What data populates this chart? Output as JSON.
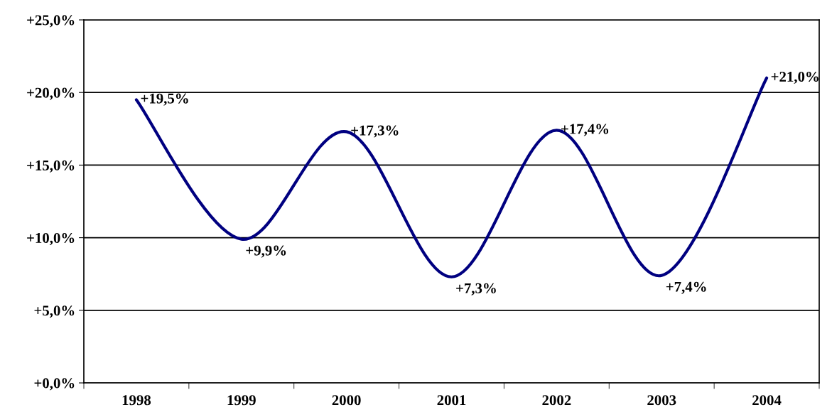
{
  "chart_data": {
    "type": "line",
    "categories": [
      "1998",
      "1999",
      "2000",
      "2001",
      "2002",
      "2003",
      "2004"
    ],
    "series": [
      {
        "color": "#000080",
        "values": [
          19.5,
          9.9,
          17.3,
          7.3,
          17.4,
          7.4,
          21.0
        ],
        "value_labels": [
          "+19,5%",
          "+9,9%",
          "+17,3%",
          "+7,3%",
          "+17,4%",
          "+7,4%",
          "+21,0%"
        ]
      }
    ],
    "ylim": [
      0,
      25
    ],
    "yticks": [
      {
        "value": 0,
        "label": "+0,0%"
      },
      {
        "value": 5,
        "label": "+5,0%"
      },
      {
        "value": 10,
        "label": "+10,0%"
      },
      {
        "value": 15,
        "label": "+15,0%"
      },
      {
        "value": 20,
        "label": "+20,0%"
      },
      {
        "value": 25,
        "label": "+25,0%"
      }
    ],
    "grid": "y",
    "legend": false,
    "marker": "none",
    "line_style": "solid"
  }
}
